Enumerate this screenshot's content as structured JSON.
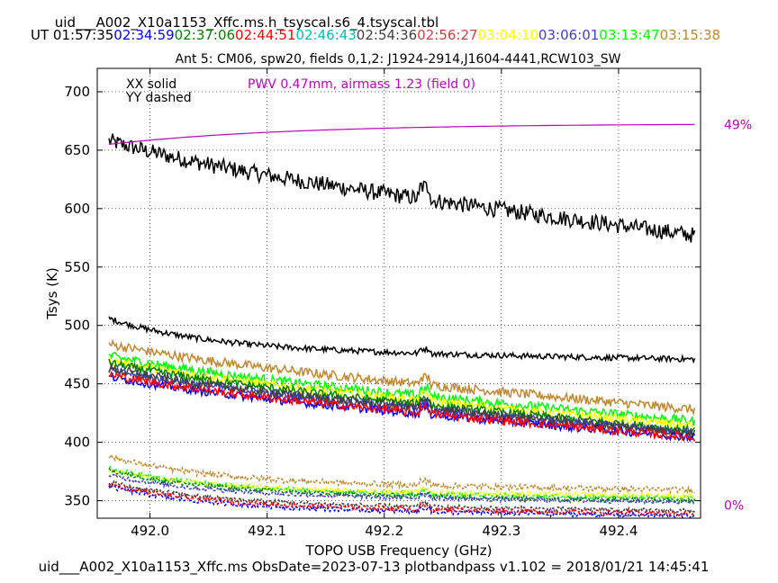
{
  "header": {
    "title": "uid___A002_X10a1153_Xffc.ms.h_tsyscal.s6_4.tsyscal.tbl",
    "ut_label": "UT",
    "ut_times": [
      {
        "t": "01:57:35",
        "color": "#000000"
      },
      {
        "t": "02:34:59",
        "color": "#0000ff"
      },
      {
        "t": "02:37:06",
        "color": "#008000"
      },
      {
        "t": "02:44:51",
        "color": "#ff0000"
      },
      {
        "t": "02:46:43",
        "color": "#00bfbf"
      },
      {
        "t": "02:54:36",
        "color": "#404040"
      },
      {
        "t": "02:56:27",
        "color": "#d04040"
      },
      {
        "t": "03:04:10",
        "color": "#ffff00"
      },
      {
        "t": "03:06:01",
        "color": "#4040c0"
      },
      {
        "t": "03:13:47",
        "color": "#00ff00"
      },
      {
        "t": "03:15:38",
        "color": "#c08830"
      }
    ],
    "subtitle": "Ant 5: CM06,  spw20,  fields 0,1,2: J1924-2914,J1604-4441,RCW103_SW"
  },
  "footer": "uid___A002_X10a1153_Xffc.ms  ObsDate=2023-07-13   plotbandpass v1.102 = 2018/01/21 14:45:41",
  "chart_data": {
    "type": "line",
    "xlabel": "TOPO USB Frequency (GHz)",
    "ylabel": "Tsys (K)",
    "xlim": [
      491.955,
      492.47
    ],
    "ylim": [
      335,
      720
    ],
    "xticks": [
      492.0,
      492.1,
      492.2,
      492.3,
      492.4
    ],
    "yticks": [
      350,
      400,
      450,
      500,
      550,
      600,
      650,
      700
    ],
    "grid": true,
    "legend_text": [
      "XX solid",
      "YY dashed"
    ],
    "pwv_annotation": "PWV 0.47mm, airmass 1.23 (field 0)",
    "pwv_color": "#c000c0",
    "right_axis_labels": [
      {
        "text": "49%",
        "y": 672
      },
      {
        "text": "0%",
        "y": 346
      }
    ],
    "x_range": [
      491.965,
      492.465
    ],
    "transmission": {
      "color": "#c000c0",
      "start": 655,
      "end": 672
    },
    "series": [
      {
        "color": "#000000",
        "start": 658,
        "end": 577,
        "noise": 7,
        "style": "solid"
      },
      {
        "color": "#000000",
        "start": 506,
        "end": 471,
        "noise": 2.5,
        "style": "solid",
        "fast": true
      },
      {
        "color": "#c08830",
        "start": 484,
        "end": 428,
        "noise": 4,
        "style": "solid"
      },
      {
        "color": "#00ff00",
        "start": 474,
        "end": 418,
        "noise": 4,
        "style": "solid"
      },
      {
        "color": "#ffff00",
        "start": 470,
        "end": 414,
        "noise": 3.5,
        "style": "solid"
      },
      {
        "color": "#008000",
        "start": 468,
        "end": 410,
        "noise": 3.5,
        "style": "solid"
      },
      {
        "color": "#4040c0",
        "start": 462,
        "end": 408,
        "noise": 3,
        "style": "solid"
      },
      {
        "color": "#404040",
        "start": 463,
        "end": 408,
        "noise": 4,
        "style": "solid"
      },
      {
        "color": "#0000ff",
        "start": 456,
        "end": 404,
        "noise": 3.5,
        "style": "solid"
      },
      {
        "color": "#ff0000",
        "start": 458,
        "end": 404,
        "noise": 3.5,
        "style": "solid"
      },
      {
        "color": "#c08830",
        "start": 388,
        "end": 359,
        "noise": 2.5,
        "style": "dashed",
        "fast": true
      },
      {
        "color": "#00ff00",
        "start": 378,
        "end": 352,
        "noise": 2,
        "style": "dashed",
        "fast": true
      },
      {
        "color": "#ffff00",
        "start": 376,
        "end": 354,
        "noise": 2,
        "style": "dashed",
        "fast": true
      },
      {
        "color": "#008000",
        "start": 376,
        "end": 350,
        "noise": 2,
        "style": "dashed",
        "fast": true
      },
      {
        "color": "#4040c0",
        "start": 372,
        "end": 349,
        "noise": 2,
        "style": "dashed",
        "fast": true
      },
      {
        "color": "#404040",
        "start": 366,
        "end": 341,
        "noise": 2,
        "style": "dashed",
        "fast": true
      },
      {
        "color": "#0000ff",
        "start": 362,
        "end": 337,
        "noise": 2,
        "style": "dashed",
        "fast": true
      },
      {
        "color": "#ff0000",
        "start": 364,
        "end": 339,
        "noise": 2,
        "style": "dashed",
        "fast": true
      }
    ]
  }
}
